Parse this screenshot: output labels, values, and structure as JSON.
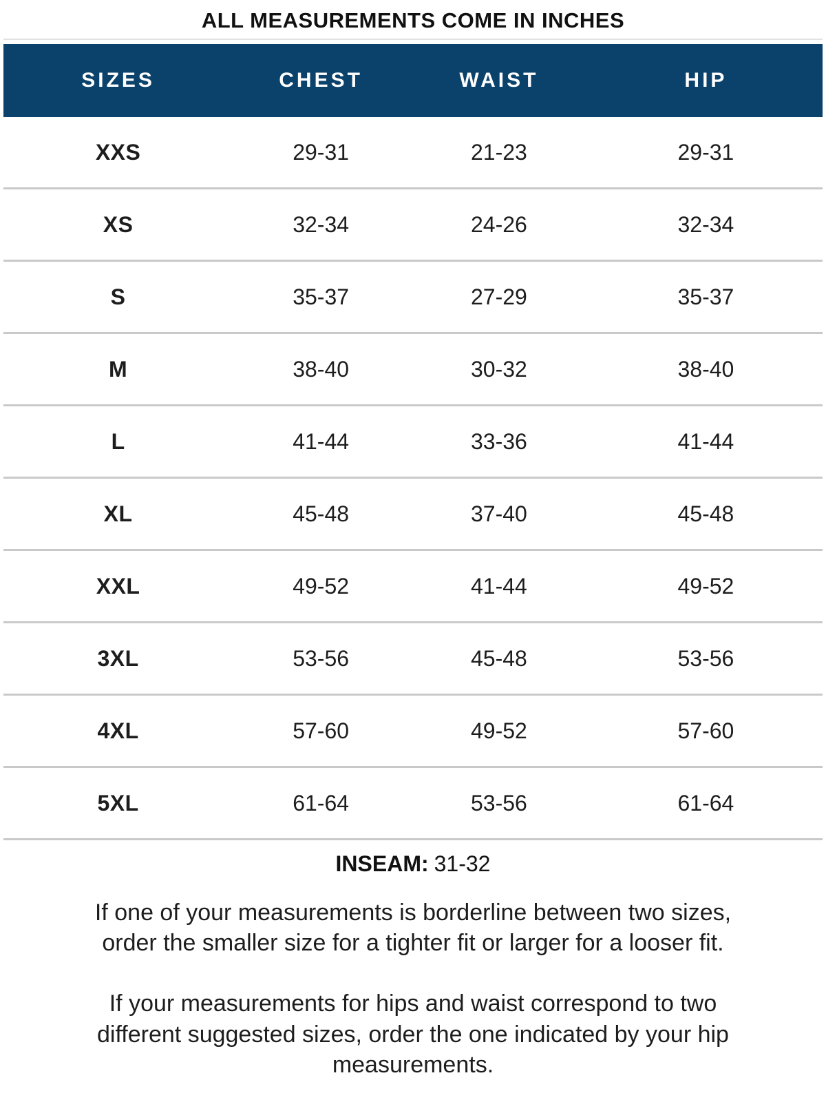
{
  "title": "ALL MEASUREMENTS COME IN INCHES",
  "chart_data": {
    "type": "table",
    "columns": [
      "SIZES",
      "CHEST",
      "WAIST",
      "HIP"
    ],
    "rows": [
      {
        "size": "XXS",
        "chest": "29-31",
        "waist": "21-23",
        "hip": "29-31"
      },
      {
        "size": "XS",
        "chest": "32-34",
        "waist": "24-26",
        "hip": "32-34"
      },
      {
        "size": "S",
        "chest": "35-37",
        "waist": "27-29",
        "hip": "35-37"
      },
      {
        "size": "M",
        "chest": "38-40",
        "waist": "30-32",
        "hip": "38-40"
      },
      {
        "size": "L",
        "chest": "41-44",
        "waist": "33-36",
        "hip": "41-44"
      },
      {
        "size": "XL",
        "chest": "45-48",
        "waist": "37-40",
        "hip": "45-48"
      },
      {
        "size": "XXL",
        "chest": "49-52",
        "waist": "41-44",
        "hip": "49-52"
      },
      {
        "size": "3XL",
        "chest": "53-56",
        "waist": "45-48",
        "hip": "53-56"
      },
      {
        "size": "4XL",
        "chest": "57-60",
        "waist": "49-52",
        "hip": "57-60"
      },
      {
        "size": "5XL",
        "chest": "61-64",
        "waist": "53-56",
        "hip": "61-64"
      }
    ]
  },
  "inseam": {
    "label": "INSEAM:",
    "value": "31-32"
  },
  "notes": [
    "If one of your measurements is borderline between two sizes,\norder the smaller size for a tighter fit or larger for a looser fit.",
    "If your measurements for hips and waist correspond to two\ndifferent suggested sizes, order the one indicated by your hip\nmeasurements."
  ],
  "colors": {
    "header_bg": "#0B426C",
    "header_text": "#FFFFFF",
    "size_label": "#154A72",
    "body_text": "#1D1D1D",
    "divider": "#C9C9C9",
    "title_text": "#111111"
  }
}
